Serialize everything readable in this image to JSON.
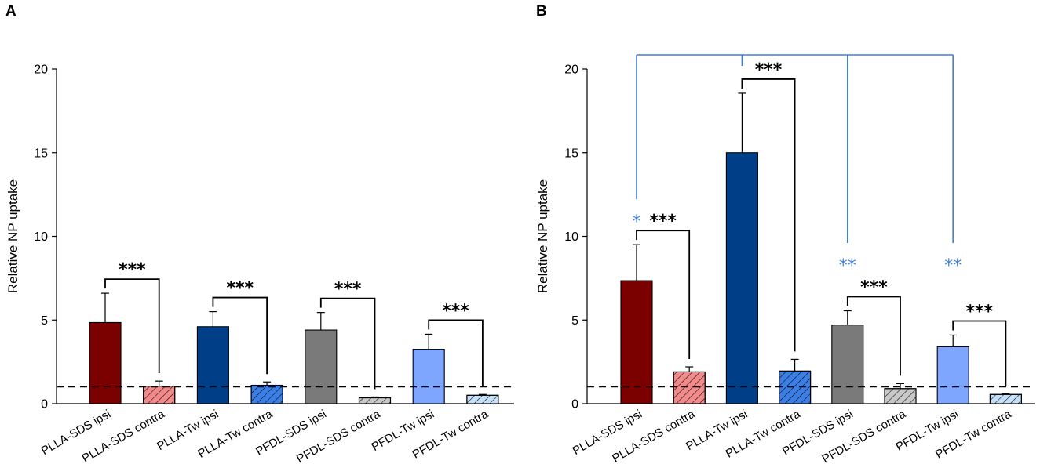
{
  "chart_data": [
    {
      "panel": "A",
      "type": "bar",
      "ylabel": "Relative NP uptake",
      "xlabel": "",
      "ylim": [
        0,
        20
      ],
      "yticks": [
        0,
        5,
        10,
        15,
        20
      ],
      "reference_line": 1,
      "categories": [
        "PLLA-SDS ipsi",
        "PLLA-SDS contra",
        "PLLA-Tw ipsi",
        "PLLA-Tw contra",
        "PFDL-SDS ipsi",
        "PFDL-SDS contra",
        "PFDL-Tw ipsi",
        "PFDL-Tw contra"
      ],
      "values": [
        4.85,
        1.05,
        4.6,
        1.1,
        4.4,
        0.35,
        3.25,
        0.5
      ],
      "errors": [
        1.75,
        0.3,
        0.9,
        0.2,
        1.05,
        0.05,
        0.9,
        0.05
      ],
      "brackets": [
        {
          "from": 0,
          "to": 1,
          "label": "***"
        },
        {
          "from": 2,
          "to": 3,
          "label": "***"
        },
        {
          "from": 4,
          "to": 5,
          "label": "***"
        },
        {
          "from": 6,
          "to": 7,
          "label": "***"
        }
      ]
    },
    {
      "panel": "B",
      "type": "bar",
      "ylabel": "Relative NP uptake",
      "xlabel": "",
      "ylim": [
        0,
        20
      ],
      "yticks": [
        0,
        5,
        10,
        15,
        20
      ],
      "reference_line": 1,
      "categories": [
        "PLLA-SDS ipsi",
        "PLLA-SDS contra",
        "PLLA-Tw ipsi",
        "PLLA-Tw contra",
        "PFDL-SDS ipsi",
        "PFDL-SDS contra",
        "PFDL-Tw ipsi",
        "PFDL-Tw contra"
      ],
      "values": [
        7.35,
        1.9,
        15.0,
        1.95,
        4.7,
        0.9,
        3.4,
        0.55
      ],
      "errors": [
        2.15,
        0.3,
        3.55,
        0.7,
        0.85,
        0.3,
        0.7,
        0.05
      ],
      "brackets": [
        {
          "from": 0,
          "to": 1,
          "label": "***"
        },
        {
          "from": 2,
          "to": 3,
          "label": "***"
        },
        {
          "from": 4,
          "to": 5,
          "label": "***"
        },
        {
          "from": 6,
          "to": 7,
          "label": "***"
        }
      ],
      "comparison": {
        "reference": 2,
        "targets": [
          {
            "index": 0,
            "label": "*"
          },
          {
            "index": 4,
            "label": "**"
          },
          {
            "index": 6,
            "label": "**"
          }
        ]
      }
    }
  ],
  "style": {
    "bar_colors": [
      "#7b0000",
      "#f28a8a",
      "#003f87",
      "#3b7fe6",
      "#7a7a7a",
      "#c8c8c8",
      "#7fa6ff",
      "#c6e0f7"
    ],
    "bar_hatched": [
      false,
      true,
      false,
      true,
      false,
      true,
      false,
      true
    ],
    "comparison_color": "#3f7fd6",
    "axis_color": "#000000"
  }
}
